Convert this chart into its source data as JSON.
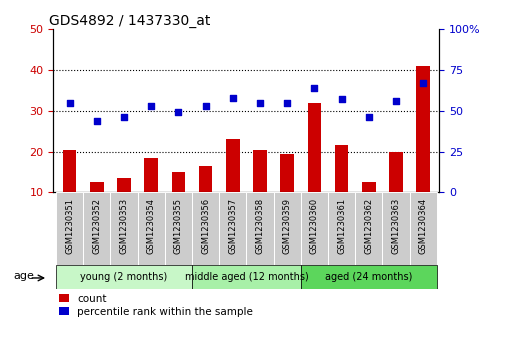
{
  "title": "GDS4892 / 1437330_at",
  "samples": [
    "GSM1230351",
    "GSM1230352",
    "GSM1230353",
    "GSM1230354",
    "GSM1230355",
    "GSM1230356",
    "GSM1230357",
    "GSM1230358",
    "GSM1230359",
    "GSM1230360",
    "GSM1230361",
    "GSM1230362",
    "GSM1230363",
    "GSM1230364"
  ],
  "counts": [
    20.5,
    12.5,
    13.5,
    18.5,
    15.0,
    16.5,
    23.0,
    20.5,
    19.5,
    32.0,
    21.5,
    12.5,
    20.0,
    41.0
  ],
  "percentiles_right": [
    55,
    44,
    46,
    53,
    49,
    53,
    58,
    55,
    55,
    64,
    57,
    46,
    56,
    67
  ],
  "count_color": "#cc0000",
  "percentile_color": "#0000cc",
  "ylim_left": [
    10,
    50
  ],
  "ylim_right": [
    0,
    100
  ],
  "yticks_left": [
    10,
    20,
    30,
    40,
    50
  ],
  "yticks_right": [
    0,
    25,
    50,
    75,
    100
  ],
  "grid_yticks": [
    20,
    30,
    40
  ],
  "groups": [
    {
      "label": "young (2 months)",
      "start": 0,
      "end": 5,
      "facecolor": "#c8f7c8"
    },
    {
      "label": "middle aged (12 months)",
      "start": 5,
      "end": 9,
      "facecolor": "#a8f0a8"
    },
    {
      "label": "aged (24 months)",
      "start": 9,
      "end": 14,
      "facecolor": "#5cd65c"
    }
  ],
  "age_label": "age",
  "legend_count": "count",
  "legend_percentile": "percentile rank within the sample",
  "bar_width": 0.5,
  "xlabel_area_color": "#cccccc",
  "group_border_color": "#000000"
}
